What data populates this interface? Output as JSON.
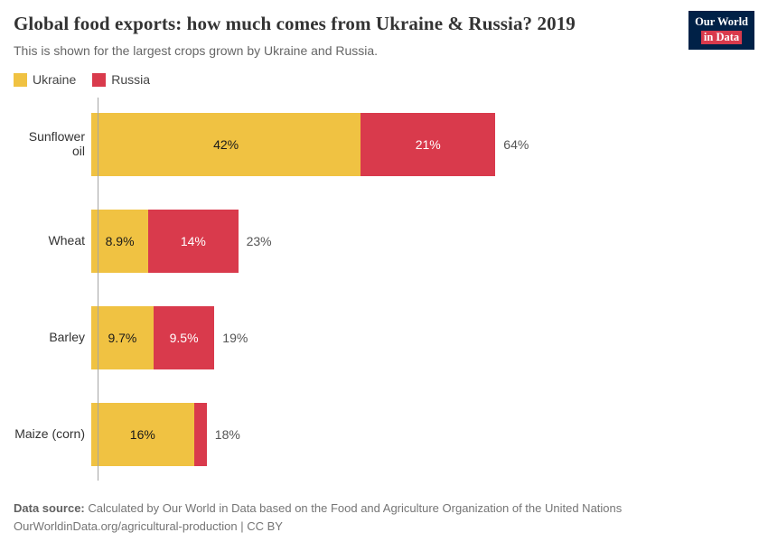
{
  "header": {
    "title": "Global food exports: how much comes from Ukraine & Russia? 2019",
    "subtitle": "This is shown for the largest crops grown by Ukraine and Russia.",
    "logo": {
      "line1": "Our World",
      "line2": "in Data",
      "bg_color": "#002147",
      "accent_color": "#d93a4c"
    }
  },
  "legend": [
    {
      "label": "Ukraine",
      "color": "#f0c242"
    },
    {
      "label": "Russia",
      "color": "#d93a4c"
    }
  ],
  "chart_data": {
    "type": "bar",
    "orientation": "horizontal",
    "stacked": true,
    "title": "Global food exports: how much comes from Ukraine & Russia? 2019",
    "categories": [
      "Sunflower oil",
      "Wheat",
      "Barley",
      "Maize (corn)"
    ],
    "series": [
      {
        "name": "Ukraine",
        "color": "#f0c242",
        "label_color": "#1a1a1a",
        "values": [
          42,
          8.9,
          9.7,
          16
        ],
        "labels": [
          "42%",
          "8.9%",
          "9.7%",
          "16%"
        ]
      },
      {
        "name": "Russia",
        "color": "#d93a4c",
        "label_color": "#ffffff",
        "values": [
          21,
          14,
          9.5,
          2
        ],
        "labels": [
          "21%",
          "14%",
          "9.5%",
          ""
        ]
      }
    ],
    "totals": [
      "64%",
      "23%",
      "19%",
      "18%"
    ],
    "xlim": [
      0,
      100
    ],
    "xlabel": "",
    "ylabel": "",
    "grid": false,
    "legend_position": "top-left"
  },
  "footer": {
    "source_label": "Data source:",
    "source_text": "Calculated by Our World in Data based on the Food and Agriculture Organization of the United Nations",
    "link_line": "OurWorldinData.org/agricultural-production | CC BY"
  }
}
